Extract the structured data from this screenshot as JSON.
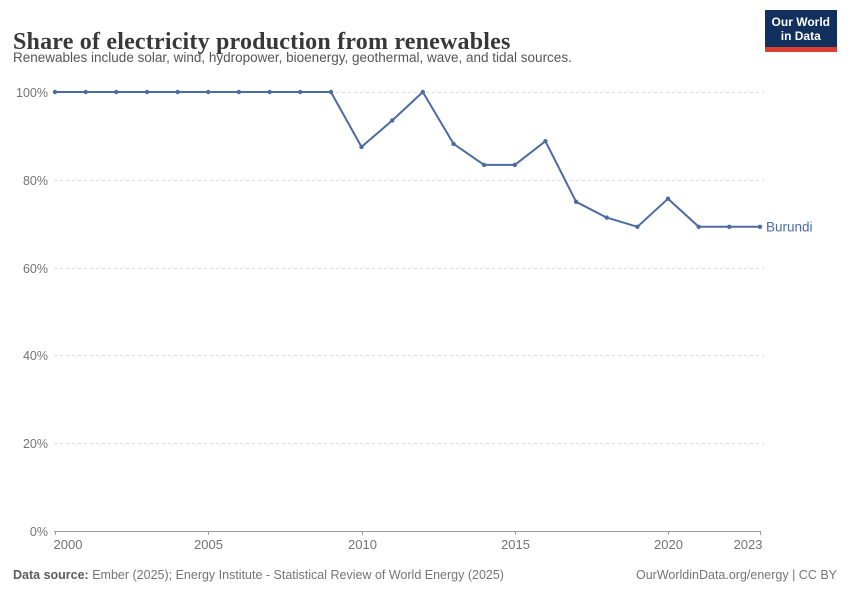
{
  "header": {
    "title": "Share of electricity production from renewables",
    "subtitle": "Renewables include solar, wind, hydropower, bioenergy, geothermal, wave, and tidal sources."
  },
  "logo": {
    "line1": "Our World",
    "line2": "in Data",
    "bg_color": "#12305e",
    "stripe_color": "#dc3e32"
  },
  "chart_data": {
    "type": "line",
    "title": "Share of electricity production from renewables",
    "x": [
      2000,
      2001,
      2002,
      2003,
      2004,
      2005,
      2006,
      2007,
      2008,
      2009,
      2010,
      2011,
      2012,
      2013,
      2014,
      2015,
      2016,
      2017,
      2018,
      2019,
      2020,
      2021,
      2022,
      2023
    ],
    "series": [
      {
        "name": "Burundi",
        "color": "#4c6ba0",
        "values": [
          100,
          100,
          100,
          100,
          100,
          100,
          100,
          100,
          100,
          100,
          87.5,
          93.5,
          100,
          88.2,
          83.4,
          83.4,
          88.8,
          75,
          71.4,
          69.3,
          75.7,
          69.3,
          69.3,
          69.3
        ]
      }
    ],
    "entity_label": "Burundi",
    "xlabel": "",
    "ylabel": "",
    "xlim": [
      2000,
      2023
    ],
    "ylim": [
      0,
      100
    ],
    "x_ticks": [
      2000,
      2005,
      2010,
      2015,
      2020,
      2023
    ],
    "y_ticks": [
      0,
      20,
      40,
      60,
      80,
      100
    ],
    "y_tick_suffix": "%",
    "grid": "horizontal-dashed",
    "legend_position": "end-of-line-label",
    "colors": {
      "line": "#4c6ba0",
      "gridline": "#dedede",
      "axis": "#9e9e9e",
      "tick_text": "#737373"
    }
  },
  "footer": {
    "datasource_label": "Data source:",
    "datasource_text": " Ember (2025); Energy Institute - Statistical Review of World Energy (2025)",
    "link_text": "OurWorldinData.org/energy | CC BY"
  }
}
